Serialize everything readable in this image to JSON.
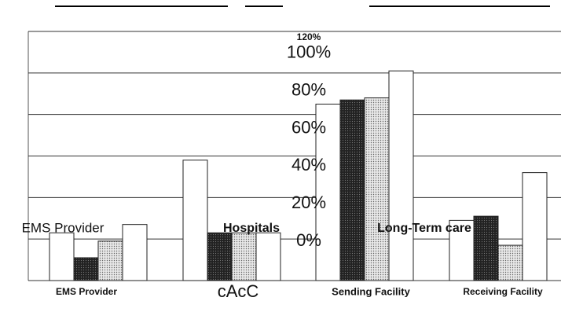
{
  "chart_data": {
    "type": "bar",
    "categories": [
      "EMS Provider",
      "Hospitals",
      "Long-Term care",
      null
    ],
    "series": [
      {
        "name": "EMS Provider",
        "color": "#ffffff",
        "values": [
          23,
          58,
          85,
          29
        ]
      },
      {
        "name": "cAcC",
        "color": "#333333",
        "values": [
          11,
          23,
          87,
          31
        ]
      },
      {
        "name": "Sending Facility",
        "color": "#d8d8d8",
        "values": [
          19,
          23,
          88,
          17
        ]
      },
      {
        "name": "Receiving Facility",
        "color": "#ffffff",
        "values": [
          27,
          23,
          101,
          52
        ]
      }
    ],
    "ylim": [
      0,
      120
    ],
    "yticks": [
      {
        "value": 0,
        "label": "0%"
      },
      {
        "value": 20,
        "label": "20%"
      },
      {
        "value": 40,
        "label": "40%"
      },
      {
        "value": 60,
        "label": "60%"
      },
      {
        "value": 80,
        "label": "80%"
      },
      {
        "value": 100,
        "label": "100%"
      },
      {
        "value": 120,
        "label": "120%"
      }
    ],
    "grid": true
  }
}
